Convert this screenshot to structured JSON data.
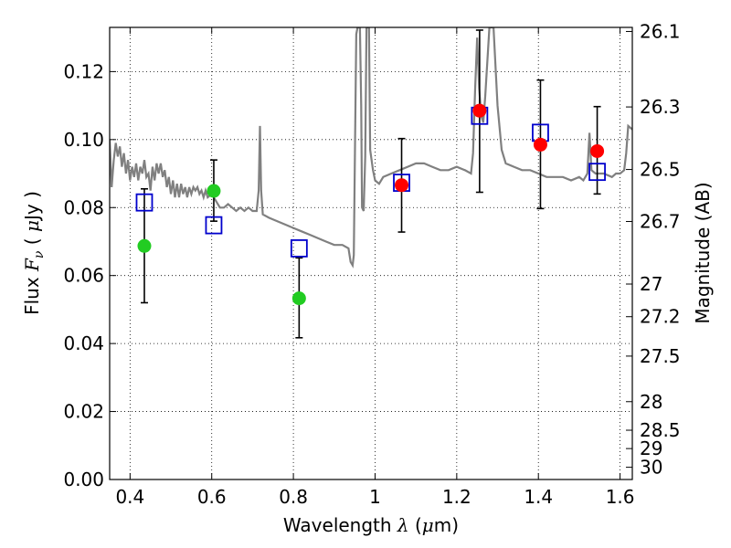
{
  "chart_data": {
    "type": "scatter",
    "xlabel": {
      "prefix": "Wavelength  ",
      "symbol": "λ",
      "unit_open": " (",
      "unit_mu": "μ",
      "unit_rest": "m)"
    },
    "ylabel": {
      "prefix": "Flux  ",
      "symbol": "F",
      "subscript": "ν",
      "unit_open": "  ( ",
      "unit_mu": "μ",
      "unit_rest": "Jy )"
    },
    "y2label": "Magnitude (AB)",
    "xlim": [
      0.35,
      1.63
    ],
    "ylim": [
      0.0,
      0.133
    ],
    "grid": true,
    "x_ticks": [
      {
        "value": 0.4,
        "label": "0.4"
      },
      {
        "value": 0.6,
        "label": "0.6"
      },
      {
        "value": 0.8,
        "label": "0.8"
      },
      {
        "value": 1.0,
        "label": "1"
      },
      {
        "value": 1.2,
        "label": "1.2"
      },
      {
        "value": 1.4,
        "label": "1.4"
      },
      {
        "value": 1.6,
        "label": "1.6"
      }
    ],
    "y_ticks": [
      {
        "value": 0.0,
        "label": "0.00"
      },
      {
        "value": 0.02,
        "label": "0.02"
      },
      {
        "value": 0.04,
        "label": "0.04"
      },
      {
        "value": 0.06,
        "label": "0.06"
      },
      {
        "value": 0.08,
        "label": "0.08"
      },
      {
        "value": 0.1,
        "label": "0.10"
      },
      {
        "value": 0.12,
        "label": "0.12"
      }
    ],
    "y2_ticks": [
      {
        "flux": 0.1318,
        "label": "26.1"
      },
      {
        "flux": 0.1096,
        "label": "26.3"
      },
      {
        "flux": 0.0912,
        "label": "26.5"
      },
      {
        "flux": 0.0759,
        "label": "26.7"
      },
      {
        "flux": 0.0575,
        "label": "27"
      },
      {
        "flux": 0.0479,
        "label": "27.2"
      },
      {
        "flux": 0.0363,
        "label": "27.5"
      },
      {
        "flux": 0.0229,
        "label": "28"
      },
      {
        "flux": 0.0145,
        "label": "28.5"
      },
      {
        "flux": 0.0091,
        "label": "29"
      },
      {
        "flux": 0.0036,
        "label": "30"
      }
    ],
    "colors": {
      "template": "#808080",
      "optical": "#22cc22",
      "nir": "#ff0000",
      "model": "#0000cc",
      "errorbar": "#000000"
    },
    "series": [
      {
        "type": "line",
        "points": [
          [
            0.35,
            0.1
          ],
          [
            0.355,
            0.086
          ],
          [
            0.36,
            0.094
          ],
          [
            0.365,
            0.099
          ],
          [
            0.37,
            0.095
          ],
          [
            0.375,
            0.098
          ],
          [
            0.38,
            0.092
          ],
          [
            0.385,
            0.096
          ],
          [
            0.39,
            0.09
          ],
          [
            0.395,
            0.094
          ],
          [
            0.4,
            0.088
          ],
          [
            0.405,
            0.092
          ],
          [
            0.41,
            0.089
          ],
          [
            0.415,
            0.093
          ],
          [
            0.42,
            0.088
          ],
          [
            0.425,
            0.092
          ],
          [
            0.43,
            0.09
          ],
          [
            0.435,
            0.094
          ],
          [
            0.44,
            0.089
          ],
          [
            0.445,
            0.09
          ],
          [
            0.45,
            0.085
          ],
          [
            0.455,
            0.092
          ],
          [
            0.46,
            0.088
          ],
          [
            0.465,
            0.093
          ],
          [
            0.47,
            0.09
          ],
          [
            0.475,
            0.093
          ],
          [
            0.48,
            0.089
          ],
          [
            0.485,
            0.091
          ],
          [
            0.49,
            0.086
          ],
          [
            0.495,
            0.089
          ],
          [
            0.5,
            0.084
          ],
          [
            0.505,
            0.088
          ],
          [
            0.51,
            0.083
          ],
          [
            0.515,
            0.087
          ],
          [
            0.52,
            0.083
          ],
          [
            0.525,
            0.087
          ],
          [
            0.53,
            0.084
          ],
          [
            0.535,
            0.086
          ],
          [
            0.54,
            0.083
          ],
          [
            0.545,
            0.086
          ],
          [
            0.55,
            0.084
          ],
          [
            0.555,
            0.086
          ],
          [
            0.56,
            0.085
          ],
          [
            0.565,
            0.086
          ],
          [
            0.57,
            0.084
          ],
          [
            0.575,
            0.085
          ],
          [
            0.58,
            0.083
          ],
          [
            0.585,
            0.085
          ],
          [
            0.59,
            0.083
          ],
          [
            0.6,
            0.084
          ],
          [
            0.61,
            0.082
          ],
          [
            0.62,
            0.08
          ],
          [
            0.63,
            0.08
          ],
          [
            0.64,
            0.081
          ],
          [
            0.65,
            0.08
          ],
          [
            0.66,
            0.079
          ],
          [
            0.67,
            0.08
          ],
          [
            0.68,
            0.079
          ],
          [
            0.69,
            0.08
          ],
          [
            0.7,
            0.079
          ],
          [
            0.71,
            0.079
          ],
          [
            0.715,
            0.085
          ],
          [
            0.718,
            0.104
          ],
          [
            0.721,
            0.085
          ],
          [
            0.725,
            0.078
          ],
          [
            0.74,
            0.077
          ],
          [
            0.76,
            0.076
          ],
          [
            0.78,
            0.075
          ],
          [
            0.8,
            0.074
          ],
          [
            0.82,
            0.073
          ],
          [
            0.84,
            0.072
          ],
          [
            0.86,
            0.071
          ],
          [
            0.88,
            0.07
          ],
          [
            0.9,
            0.069
          ],
          [
            0.92,
            0.069
          ],
          [
            0.935,
            0.068
          ],
          [
            0.94,
            0.064
          ],
          [
            0.945,
            0.063
          ],
          [
            0.948,
            0.066
          ],
          [
            0.951,
            0.1
          ],
          [
            0.954,
            0.131
          ],
          [
            0.957,
            0.133
          ],
          [
            0.963,
            0.133
          ],
          [
            0.966,
            0.11
          ],
          [
            0.968,
            0.08
          ],
          [
            0.972,
            0.079
          ],
          [
            0.976,
            0.095
          ],
          [
            0.979,
            0.133
          ],
          [
            0.985,
            0.133
          ],
          [
            0.988,
            0.097
          ],
          [
            0.995,
            0.091
          ],
          [
            1.0,
            0.088
          ],
          [
            1.01,
            0.087
          ],
          [
            1.02,
            0.089
          ],
          [
            1.04,
            0.09
          ],
          [
            1.06,
            0.091
          ],
          [
            1.08,
            0.092
          ],
          [
            1.1,
            0.093
          ],
          [
            1.12,
            0.093
          ],
          [
            1.14,
            0.092
          ],
          [
            1.16,
            0.091
          ],
          [
            1.18,
            0.091
          ],
          [
            1.2,
            0.092
          ],
          [
            1.22,
            0.091
          ],
          [
            1.235,
            0.09
          ],
          [
            1.24,
            0.096
          ],
          [
            1.245,
            0.115
          ],
          [
            1.25,
            0.13
          ],
          [
            1.255,
            0.115
          ],
          [
            1.26,
            0.107
          ],
          [
            1.265,
            0.105
          ],
          [
            1.27,
            0.113
          ],
          [
            1.28,
            0.133
          ],
          [
            1.29,
            0.133
          ],
          [
            1.3,
            0.11
          ],
          [
            1.31,
            0.097
          ],
          [
            1.32,
            0.093
          ],
          [
            1.34,
            0.092
          ],
          [
            1.36,
            0.091
          ],
          [
            1.38,
            0.091
          ],
          [
            1.4,
            0.09
          ],
          [
            1.42,
            0.089
          ],
          [
            1.44,
            0.089
          ],
          [
            1.46,
            0.089
          ],
          [
            1.48,
            0.088
          ],
          [
            1.5,
            0.089
          ],
          [
            1.51,
            0.088
          ],
          [
            1.52,
            0.09
          ],
          [
            1.525,
            0.102
          ],
          [
            1.53,
            0.091
          ],
          [
            1.54,
            0.09
          ],
          [
            1.56,
            0.09
          ],
          [
            1.58,
            0.089
          ],
          [
            1.59,
            0.09
          ],
          [
            1.6,
            0.09
          ],
          [
            1.61,
            0.091
          ],
          [
            1.615,
            0.096
          ],
          [
            1.62,
            0.104
          ],
          [
            1.63,
            0.103
          ]
        ]
      },
      {
        "type": "scatter",
        "marker": "circle",
        "points": [
          {
            "x": 0.435,
            "y": 0.0687,
            "err_lo": 0.052,
            "err_hi": 0.0855
          },
          {
            "x": 0.605,
            "y": 0.0849,
            "err_lo": 0.076,
            "err_hi": 0.094
          },
          {
            "x": 0.814,
            "y": 0.0533,
            "err_lo": 0.0417,
            "err_hi": 0.0652
          }
        ]
      },
      {
        "type": "scatter",
        "marker": "circle",
        "points": [
          {
            "x": 1.065,
            "y": 0.0866,
            "err_lo": 0.0728,
            "err_hi": 0.1003
          },
          {
            "x": 1.256,
            "y": 0.1085,
            "err_lo": 0.0845,
            "err_hi": 0.1322
          },
          {
            "x": 1.405,
            "y": 0.0985,
            "err_lo": 0.0797,
            "err_hi": 0.1175
          },
          {
            "x": 1.544,
            "y": 0.0966,
            "err_lo": 0.084,
            "err_hi": 0.1097
          }
        ]
      },
      {
        "type": "scatter",
        "marker": "square-open",
        "points": [
          {
            "x": 0.435,
            "y": 0.0815
          },
          {
            "x": 0.605,
            "y": 0.0748
          },
          {
            "x": 0.814,
            "y": 0.068
          },
          {
            "x": 1.065,
            "y": 0.0873
          },
          {
            "x": 1.256,
            "y": 0.107
          },
          {
            "x": 1.405,
            "y": 0.102
          },
          {
            "x": 1.544,
            "y": 0.0905
          }
        ]
      }
    ]
  }
}
